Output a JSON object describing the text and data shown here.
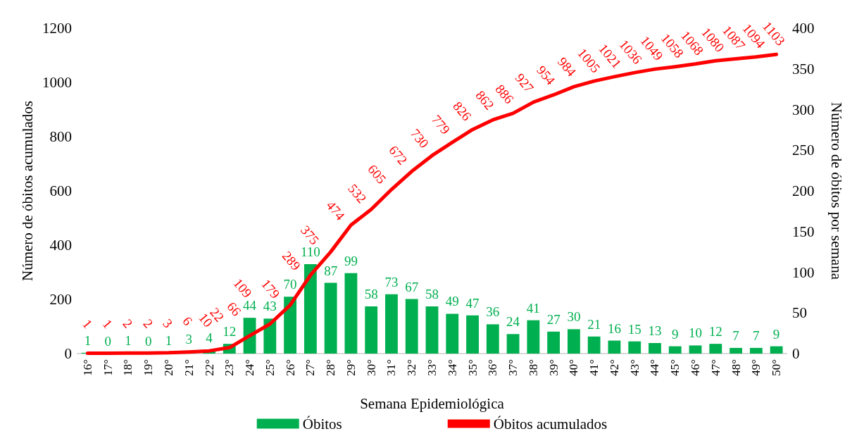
{
  "chart_data": {
    "type": "bar",
    "xlabel": "Semana Epidemiológica",
    "ylabel": "Número de óbitos acumulados",
    "y2label": "Número de óbitos por semana",
    "categories": [
      "16°",
      "17°",
      "18°",
      "19°",
      "20°",
      "21°",
      "22°",
      "23°",
      "24°",
      "25°",
      "26°",
      "27°",
      "28°",
      "29°",
      "30°",
      "31°",
      "32°",
      "33°",
      "34°",
      "35°",
      "36°",
      "37°",
      "38°",
      "39°",
      "40°",
      "41°",
      "42°",
      "43°",
      "44°",
      "45°",
      "46°",
      "47°",
      "48°",
      "49°",
      "50°"
    ],
    "series": [
      {
        "name": "Óbitos",
        "axis": "y2",
        "color": "#00b050",
        "values": [
          1,
          0,
          1,
          0,
          1,
          3,
          4,
          12,
          44,
          43,
          70,
          110,
          87,
          99,
          58,
          73,
          67,
          58,
          49,
          47,
          36,
          24,
          41,
          27,
          30,
          21,
          16,
          15,
          13,
          9,
          10,
          12,
          7,
          7,
          9
        ]
      },
      {
        "name": "Óbitos acumulados",
        "type": "line",
        "color": "#ff0000",
        "values": [
          1,
          1,
          2,
          2,
          3,
          6,
          10,
          22,
          66,
          109,
          179,
          289,
          375,
          474,
          532,
          605,
          672,
          730,
          779,
          826,
          862,
          886,
          927,
          954,
          984,
          1005,
          1021,
          1036,
          1049,
          1058,
          1068,
          1080,
          1087,
          1094,
          1103
        ]
      }
    ],
    "ylim": [
      0,
      1200
    ],
    "yticks": [
      0,
      200,
      400,
      600,
      800,
      1000,
      1200
    ],
    "y2lim": [
      0,
      400
    ],
    "y2ticks": [
      0,
      50,
      100,
      150,
      200,
      250,
      300,
      350,
      400
    ],
    "data_labels": true,
    "legend": "bottom",
    "grid": false,
    "marker": "none",
    "line_style": "solid"
  }
}
